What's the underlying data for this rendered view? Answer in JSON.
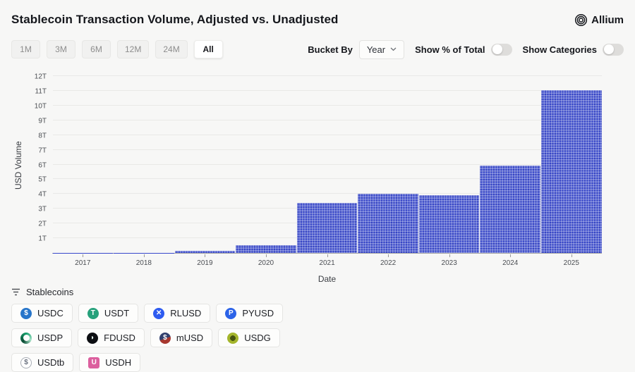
{
  "header": {
    "title": "Stablecoin Transaction Volume, Adjusted vs. Unadjusted",
    "brand": "Allium"
  },
  "toolbar": {
    "ranges": [
      {
        "label": "1M",
        "active": false
      },
      {
        "label": "3M",
        "active": false
      },
      {
        "label": "6M",
        "active": false
      },
      {
        "label": "12M",
        "active": false
      },
      {
        "label": "24M",
        "active": false
      },
      {
        "label": "All",
        "active": true
      }
    ],
    "bucket_by_label": "Bucket By",
    "bucket_by_value": "Year",
    "toggles": [
      {
        "label": "Show % of Total",
        "on": false
      },
      {
        "label": "Show Categories",
        "on": false
      }
    ]
  },
  "chart_data": {
    "type": "bar",
    "title": "Stablecoin Transaction Volume, Adjusted vs. Unadjusted",
    "xlabel": "Date",
    "ylabel": "USD Volume",
    "categories": [
      "2017",
      "2018",
      "2019",
      "2020",
      "2021",
      "2022",
      "2023",
      "2024",
      "2025"
    ],
    "values": [
      0.005,
      0.02,
      0.13,
      0.55,
      3.4,
      4.0,
      3.9,
      5.95,
      11.05
    ],
    "unit": "T",
    "ylim": [
      0,
      12
    ],
    "ytick_step": 1,
    "ytick_suffix": "T",
    "grid": true,
    "legend_position": "bottom",
    "bar_color": "#3747cc",
    "bar_pattern": "dotted-grid"
  },
  "legend": {
    "filter_label": "Stablecoins",
    "chips": [
      {
        "label": "USDC",
        "shape": "circle",
        "bg": "#2775CA",
        "fg": "#ffffff",
        "glyph": "$"
      },
      {
        "label": "USDT",
        "shape": "circle",
        "bg": "#26A17B",
        "fg": "#ffffff",
        "glyph": "T"
      },
      {
        "label": "RLUSD",
        "shape": "circle",
        "bg": "#2E5BF0",
        "fg": "#ffffff",
        "glyph": "✕"
      },
      {
        "label": "PYUSD",
        "shape": "circle",
        "bg": "#2C63E8",
        "fg": "#ffffff",
        "glyph": "P"
      },
      {
        "label": "USDP",
        "shape": "ring",
        "bg": "conic-gradient(from 220deg, #0a4b33, #16a06c 40%, #a7e3c8 70%, #0a4b33)",
        "fg": "#0a4b33",
        "glyph": ""
      },
      {
        "label": "FDUSD",
        "shape": "circle",
        "bg": "#0c0e12",
        "fg": "#eafff5",
        "glyph": "◗"
      },
      {
        "label": "mUSD",
        "shape": "circle",
        "bg": "linear-gradient(160deg, #32406e 52%, #a8382f 53%)",
        "fg": "#ffffff",
        "glyph": "$"
      },
      {
        "label": "USDG",
        "shape": "circle",
        "bg": "radial-gradient(circle, #46540f 0 34%, #a4b52c 35% 100%)",
        "fg": "#2c3508",
        "glyph": ""
      },
      {
        "label": "USDtb",
        "shape": "outline",
        "bg": "#ffffff",
        "fg": "#6b7280",
        "glyph": "$",
        "border": "#a8adb5"
      },
      {
        "label": "USDH",
        "shape": "square",
        "bg": "#DC5F9E",
        "fg": "#ffffff",
        "glyph": "U"
      }
    ]
  },
  "colors": {
    "page_bg": "#f7f7f6",
    "bar_fill": "#3747cc",
    "gridline": "#e9e9e7",
    "axis_line": "#a3a3a1",
    "toggle_off": "#dedddb",
    "chip_border": "#e5e5e3"
  }
}
